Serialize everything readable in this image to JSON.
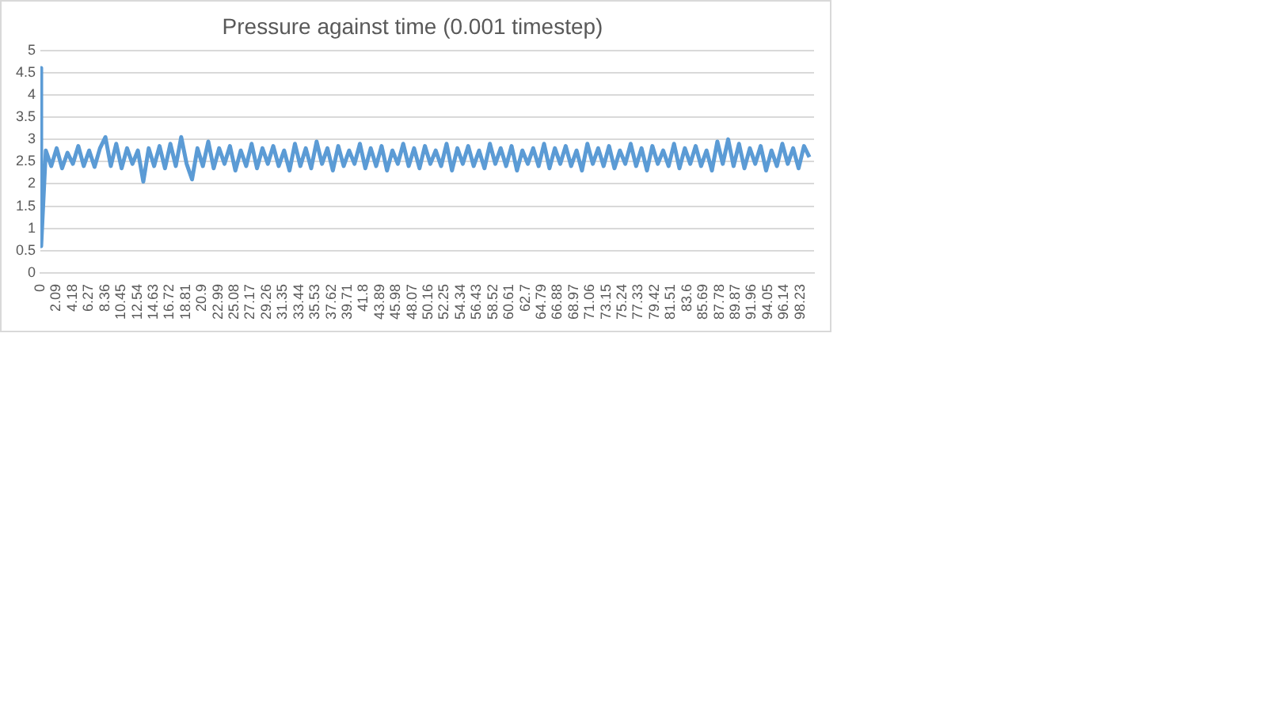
{
  "chart_data": {
    "type": "line",
    "title": "Pressure against time (0.001 timestep)",
    "series": [
      {
        "color": "#5b9bd5",
        "x": [
          0,
          0.1,
          0.7,
          1.4,
          2.1,
          2.8,
          3.5,
          4.2,
          4.9,
          5.6,
          6.3,
          7,
          7.7,
          8.4,
          9.1,
          9.8,
          10.5,
          11.2,
          11.9,
          12.6,
          13.3,
          14,
          14.7,
          15.4,
          16.1,
          16.8,
          17.5,
          18.2,
          18.9,
          19.6,
          20.3,
          21,
          21.7,
          22.4,
          23.1,
          23.8,
          24.5,
          25.2,
          25.9,
          26.6,
          27.3,
          28,
          28.7,
          29.4,
          30.1,
          30.8,
          31.5,
          32.2,
          32.9,
          33.6,
          34.3,
          35,
          35.7,
          36.4,
          37.1,
          37.8,
          38.5,
          39.2,
          39.9,
          40.6,
          41.3,
          42,
          42.7,
          43.4,
          44.1,
          44.8,
          45.5,
          46.2,
          46.9,
          47.6,
          48.3,
          49,
          49.7,
          50.4,
          51.1,
          51.8,
          52.5,
          53.2,
          53.9,
          54.6,
          55.3,
          56,
          56.7,
          57.4,
          58.1,
          58.8,
          59.5,
          60.2,
          60.9,
          61.6,
          62.3,
          63,
          63.7,
          64.4,
          65.1,
          65.8,
          66.5,
          67.2,
          67.9,
          68.6,
          69.3,
          70,
          70.7,
          71.4,
          72.1,
          72.8,
          73.5,
          74.2,
          74.9,
          75.6,
          76.3,
          77,
          77.7,
          78.4,
          79.1,
          79.8,
          80.5,
          81.2,
          81.9,
          82.6,
          83.3,
          84,
          84.7,
          85.4,
          86.1,
          86.8,
          87.5,
          88.2,
          88.9,
          89.6,
          90.3,
          91,
          91.7,
          92.4,
          93.1,
          93.8,
          94.5,
          95.2,
          95.9,
          96.6,
          97.3,
          98,
          98.7,
          99.4
        ],
        "values": [
          4.6,
          0.6,
          2.75,
          2.4,
          2.8,
          2.35,
          2.7,
          2.45,
          2.85,
          2.4,
          2.75,
          2.38,
          2.8,
          3.05,
          2.4,
          2.9,
          2.35,
          2.8,
          2.45,
          2.75,
          2.05,
          2.8,
          2.4,
          2.85,
          2.35,
          2.9,
          2.4,
          3.05,
          2.45,
          2.1,
          2.8,
          2.4,
          2.95,
          2.35,
          2.8,
          2.45,
          2.85,
          2.3,
          2.75,
          2.4,
          2.9,
          2.35,
          2.8,
          2.45,
          2.85,
          2.4,
          2.75,
          2.3,
          2.9,
          2.4,
          2.8,
          2.35,
          2.95,
          2.45,
          2.8,
          2.3,
          2.85,
          2.4,
          2.75,
          2.45,
          2.9,
          2.35,
          2.8,
          2.4,
          2.85,
          2.3,
          2.75,
          2.45,
          2.9,
          2.4,
          2.8,
          2.35,
          2.85,
          2.45,
          2.75,
          2.4,
          2.9,
          2.3,
          2.8,
          2.45,
          2.85,
          2.4,
          2.75,
          2.35,
          2.9,
          2.45,
          2.8,
          2.4,
          2.85,
          2.3,
          2.75,
          2.45,
          2.8,
          2.4,
          2.9,
          2.35,
          2.8,
          2.45,
          2.85,
          2.4,
          2.75,
          2.3,
          2.9,
          2.45,
          2.8,
          2.4,
          2.85,
          2.35,
          2.75,
          2.45,
          2.9,
          2.4,
          2.8,
          2.3,
          2.85,
          2.45,
          2.75,
          2.4,
          2.9,
          2.35,
          2.8,
          2.45,
          2.85,
          2.4,
          2.75,
          2.3,
          2.95,
          2.45,
          3.0,
          2.4,
          2.9,
          2.35,
          2.8,
          2.45,
          2.85,
          2.3,
          2.75,
          2.4,
          2.9,
          2.45,
          2.8,
          2.35,
          2.85,
          2.6
        ]
      }
    ],
    "xlim": [
      0,
      100
    ],
    "xticks": [
      0,
      2.09,
      4.18,
      6.27,
      8.36,
      10.45,
      12.54,
      14.63,
      16.72,
      18.81,
      20.9,
      22.99,
      25.08,
      27.17,
      29.26,
      31.35,
      33.44,
      35.53,
      37.62,
      39.71,
      41.8,
      43.89,
      45.98,
      48.07,
      50.16,
      52.25,
      54.34,
      56.43,
      58.52,
      60.61,
      62.7,
      64.79,
      66.88,
      68.97,
      71.06,
      73.15,
      75.24,
      77.33,
      79.42,
      81.51,
      83.6,
      85.69,
      87.78,
      89.87,
      91.96,
      94.05,
      96.14,
      98.23
    ],
    "ylim": [
      0,
      5
    ],
    "yticks": [
      0,
      0.5,
      1,
      1.5,
      2,
      2.5,
      3,
      3.5,
      4,
      4.5,
      5
    ],
    "grid": "y",
    "legend": false,
    "marker": "none",
    "line_style": "solid"
  }
}
